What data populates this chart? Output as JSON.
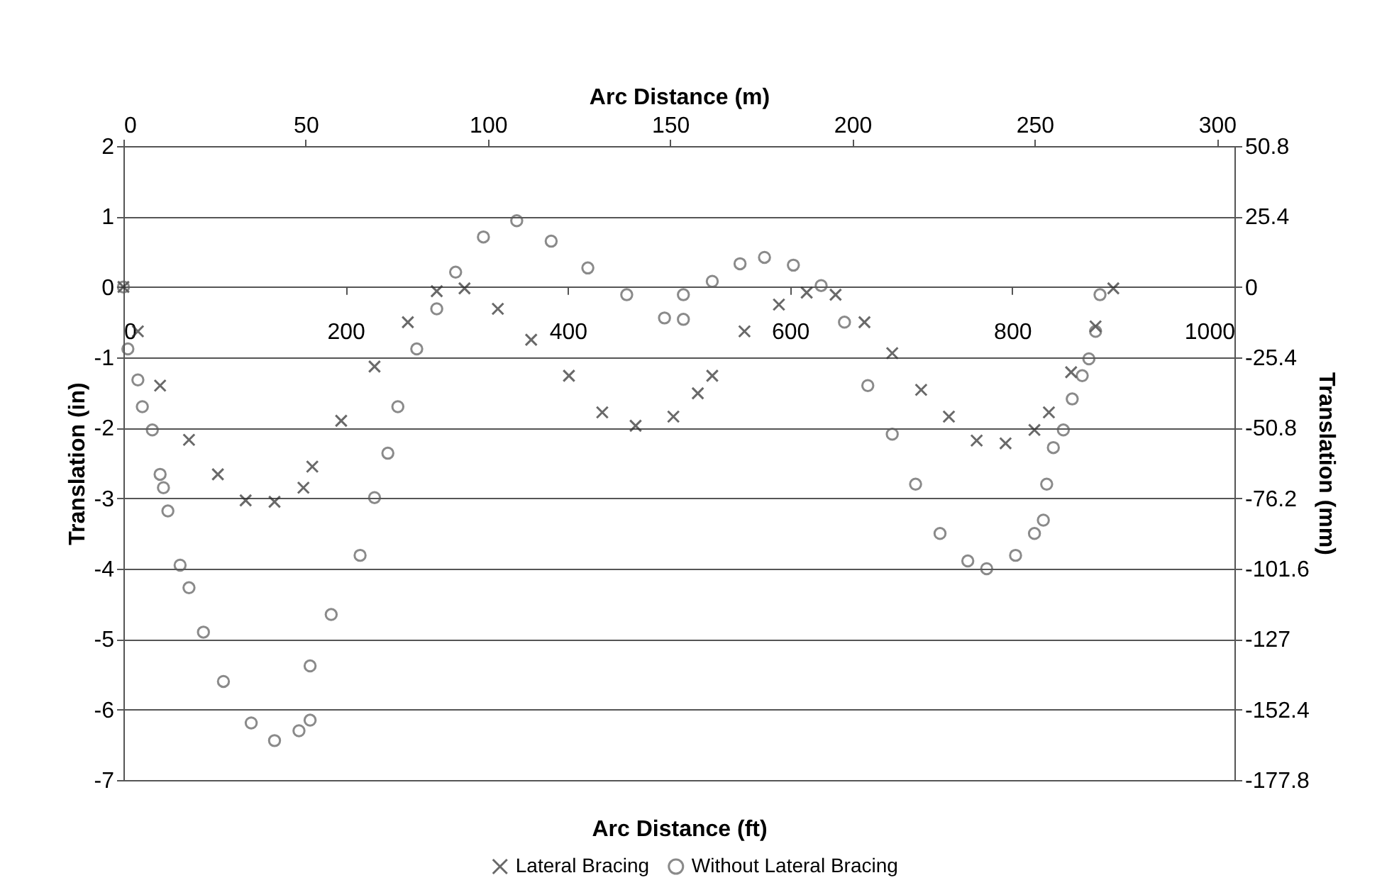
{
  "chart_data": {
    "type": "scatter",
    "xlabel": "Arc Distance (ft)",
    "ylabel": "Translation (in)",
    "y2label": "Translation (mm)",
    "x2label": "Arc Distance (m)",
    "xlim": [
      0,
      1000
    ],
    "xticks": [
      0,
      200,
      400,
      600,
      800,
      1000
    ],
    "x2lim": [
      0,
      304.8
    ],
    "x2ticks": [
      0,
      50,
      100,
      150,
      200,
      250,
      300
    ],
    "ylim": [
      -7,
      2
    ],
    "yticks": [
      -7,
      -6,
      -5,
      -4,
      -3,
      -2,
      -1,
      0,
      1,
      2
    ],
    "y2lim": [
      -177.8,
      50.8
    ],
    "y2ticks": [
      -177.8,
      -152.4,
      -127,
      -101.6,
      -76.2,
      -50.8,
      -25.4,
      0,
      25.4,
      50.8
    ],
    "grid": "y",
    "legend": "bottom",
    "series": [
      {
        "name": "Lateral Bracing",
        "color": "#2b2b2b",
        "marker": "cross",
        "x": [
          0,
          13,
          33,
          59,
          85,
          110,
          136,
          162,
          170,
          196,
          226,
          256,
          282,
          307,
          337,
          367,
          401,
          431,
          461,
          495,
          517,
          530,
          559,
          590,
          615,
          641,
          667,
          692,
          718,
          743,
          768,
          794,
          820,
          833,
          853,
          875,
          891
        ],
        "values": [
          0,
          -0.63,
          -1.4,
          -2.17,
          -2.66,
          -3.03,
          -3.05,
          -2.85,
          -2.55,
          -1.9,
          -1.13,
          -0.5,
          -0.06,
          -0.02,
          -0.31,
          -0.75,
          -1.26,
          -1.78,
          -1.97,
          -1.84,
          -1.51,
          -1.26,
          -0.63,
          -0.25,
          -0.08,
          -0.11,
          -0.5,
          -0.94,
          -1.46,
          -1.84,
          -2.18,
          -2.22,
          -2.03,
          -1.78,
          -1.21,
          -0.56,
          -0.02
        ]
      },
      {
        "name": "Without Lateral Bracing",
        "color": "#5a5a5a",
        "marker": "circle",
        "x": [
          0,
          4,
          13,
          17,
          26,
          33,
          36,
          40,
          51,
          59,
          72,
          90,
          115,
          136,
          158,
          168,
          168,
          187,
          213,
          226,
          238,
          247,
          264,
          282,
          299,
          324,
          354,
          385,
          418,
          453,
          487,
          504,
          504,
          530,
          555,
          577,
          603,
          628,
          649,
          670,
          692,
          713,
          735,
          760,
          777,
          803,
          820,
          828,
          831,
          837,
          846,
          854,
          863,
          869,
          875,
          879
        ],
        "values": [
          0,
          -0.88,
          -1.32,
          -1.7,
          -2.03,
          -2.66,
          -2.85,
          -3.18,
          -3.95,
          -4.27,
          -4.9,
          -5.6,
          -6.19,
          -6.44,
          -6.3,
          -6.15,
          -5.38,
          -4.65,
          -3.81,
          -2.99,
          -2.36,
          -1.7,
          -0.88,
          -0.31,
          0.21,
          0.71,
          0.94,
          0.65,
          0.27,
          -0.11,
          -0.44,
          -0.46,
          -0.11,
          0.08,
          0.33,
          0.42,
          0.31,
          0.02,
          -0.5,
          -1.4,
          -2.09,
          -2.8,
          -3.5,
          -3.89,
          -4.0,
          -3.81,
          -3.5,
          -3.31,
          -2.8,
          -2.28,
          -2.03,
          -1.59,
          -1.26,
          -1.02,
          -0.63,
          -0.11
        ]
      }
    ]
  }
}
